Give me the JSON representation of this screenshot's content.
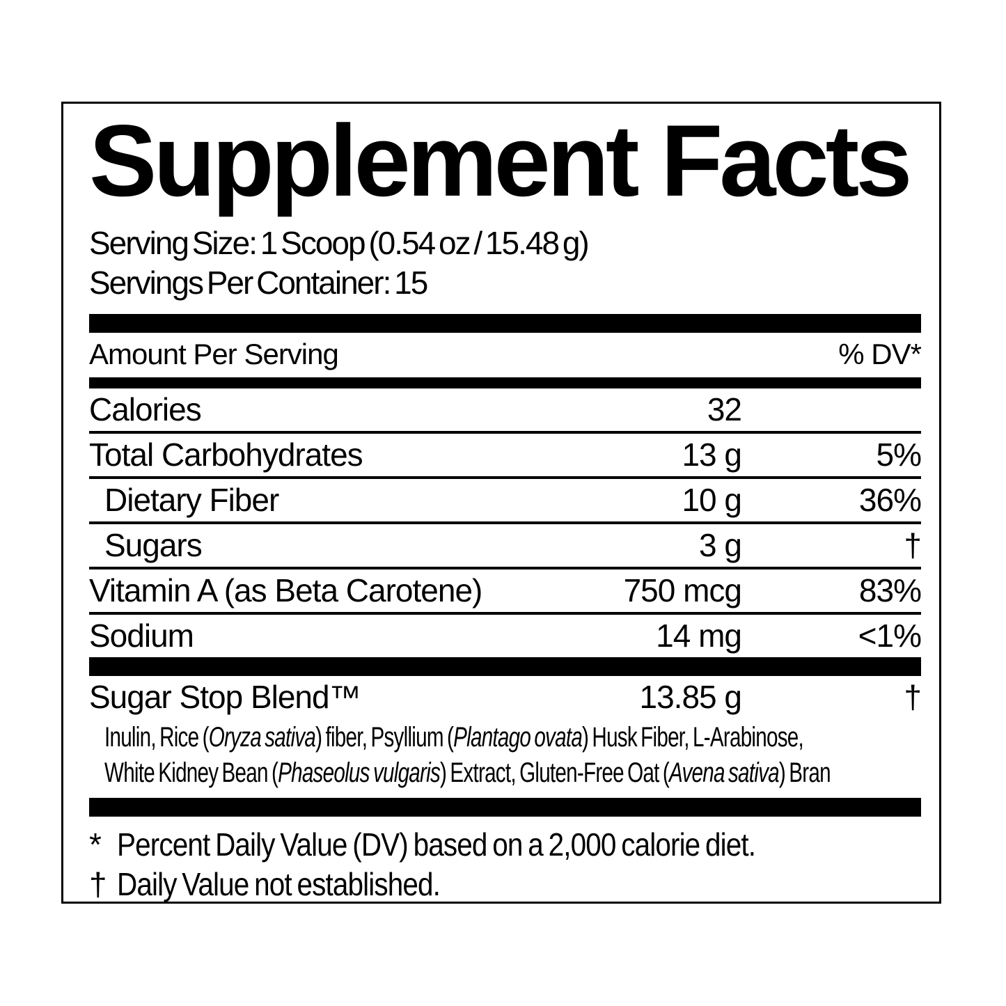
{
  "colors": {
    "text": "#000000",
    "background": "#ffffff"
  },
  "title": "Supplement Facts",
  "serving": {
    "size_line": "Serving Size: 1 Scoop (0.54 oz / 15.48 g)",
    "servings_line": "Servings Per Container: 15"
  },
  "table": {
    "header": {
      "left": "Amount Per Serving",
      "right": "% DV*"
    },
    "rows": [
      {
        "name": "Calories",
        "amount": "32",
        "dv": ""
      },
      {
        "name": "Total Carbohydrates",
        "amount": "13 g",
        "dv": "5%"
      },
      {
        "name": "Dietary Fiber",
        "amount": "10 g",
        "dv": "36%"
      },
      {
        "name": "Sugars",
        "amount": "3 g",
        "dv": "†"
      },
      {
        "name": "Vitamin A (as Beta Carotene)",
        "amount": "750 mcg",
        "dv": "83%"
      },
      {
        "name": "Sodium",
        "amount": "14 mg",
        "dv": "<1%"
      }
    ],
    "blend": {
      "name": "Sugar Stop Blend™",
      "amount": "13.85 g",
      "dv": "†",
      "ingredients_segments": [
        {
          "t": "Inulin, Rice ("
        },
        {
          "t": "Oryza sativa",
          "i": true
        },
        {
          "t": ") fiber, Psyllium ("
        },
        {
          "t": "Plantago ovata",
          "i": true
        },
        {
          "t": ") Husk Fiber, L-Arabinose,"
        },
        {
          "br": true
        },
        {
          "t": "White Kidney Bean ("
        },
        {
          "t": "Phaseolus vulgaris",
          "i": true
        },
        {
          "t": ") Extract, Gluten-Free Oat ("
        },
        {
          "t": "Avena sativa",
          "i": true
        },
        {
          "t": ") Bran"
        }
      ]
    }
  },
  "footnotes": [
    {
      "marker": "*",
      "text": "Percent Daily Value (DV) based on a 2,000 calorie diet."
    },
    {
      "marker": "†",
      "text": "Daily Value not established."
    }
  ]
}
